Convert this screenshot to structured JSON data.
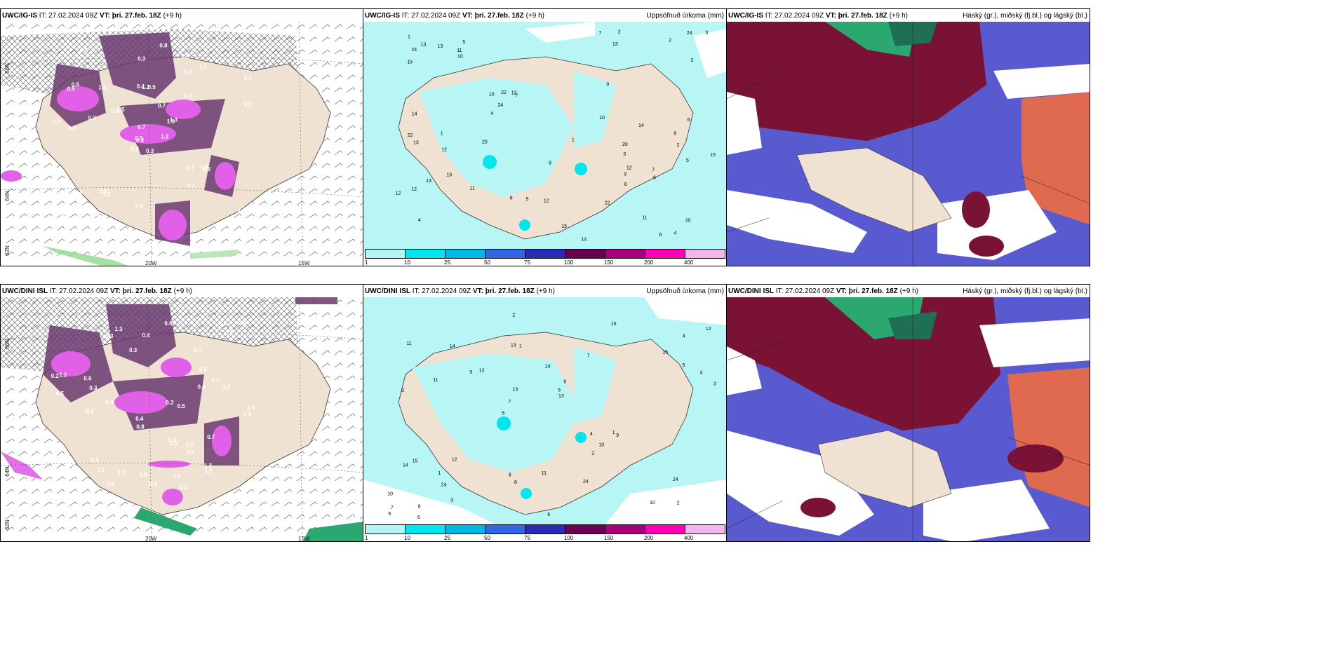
{
  "rows": [
    {
      "model": "UWC/IG-IS",
      "it": "IT: 27.02.2024 09Z",
      "vt": "VT: þri. 27.feb. 18Z",
      "offset": "(+9 h)"
    },
    {
      "model": "UWC/DINI ISL",
      "it": "IT: 27.02.2024 09Z",
      "vt": "VT: þri. 27.feb. 18Z",
      "offset": "(+9 h)"
    }
  ],
  "titles": {
    "precip": "Uppsöfnuð úrkoma (mm)",
    "clouds": "Háský (gr.), miðský (fj.bl.) og lágský (bl.)"
  },
  "axis": {
    "lat66": "66N",
    "lat64": "64N",
    "lat62": "62N",
    "lon20": "20W",
    "lon15": "15W"
  },
  "colorbar": {
    "ticks": [
      "1",
      "10",
      "25",
      "50",
      "75",
      "100",
      "150",
      "200",
      "400"
    ],
    "colors": [
      "#b3f5f5",
      "#00e5ee",
      "#00b8e6",
      "#3366e6",
      "#2a2ab8",
      "#6b0050",
      "#a8007a",
      "#ff00b4",
      "#f5b3f0"
    ]
  },
  "colors": {
    "land": "#efe2d2",
    "precip_light": "#b8f5f5",
    "cloud_high": "#7a1236",
    "cloud_mid": "#5a5ad0",
    "cloud_low": "#e06a50",
    "cloud_green": "#2aa870",
    "snow_dark": "#6a3a70",
    "snow_light": "#e060e8"
  },
  "panel1_labels": [
    "0.3",
    "0.5",
    "0.4",
    "0.7",
    "1.0",
    "1.5",
    "0.6",
    "0.5",
    "1.2",
    "1.3",
    "0.8",
    "0.5",
    "0.3",
    "0.7",
    "0.9"
  ],
  "panel2_labels": [
    "3",
    "2",
    "4",
    "5",
    "7",
    "11",
    "12",
    "13",
    "10",
    "14",
    "15",
    "22",
    "24",
    "20",
    "8",
    "6",
    "9",
    "1",
    "12",
    "13"
  ],
  "panel4_labels": [
    "0.4",
    "0.3",
    "0.5",
    "0.6",
    "0.7",
    "1.0",
    "1.3",
    "0.9",
    "0.8",
    "1.2",
    "0.5",
    "0.2",
    "0.4",
    "0.3"
  ],
  "panel5_labels": [
    "2",
    "3",
    "4",
    "5",
    "7",
    "8",
    "13",
    "14",
    "15",
    "12",
    "10",
    "24",
    "1",
    "6",
    "9",
    "11"
  ]
}
